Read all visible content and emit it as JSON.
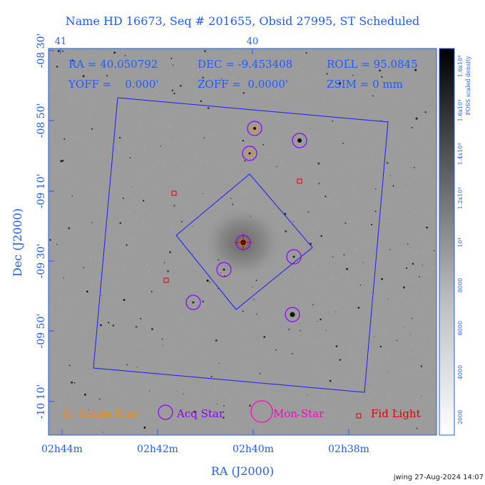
{
  "header": {
    "title": "Name HD 16673, Seq # 201655, Obsid 27995, ST Scheduled"
  },
  "top_axis": {
    "ticks": [
      "41",
      "40"
    ]
  },
  "info": {
    "ra": "RA = 40.050792",
    "dec": "DEC = -9.453408",
    "roll": "ROLL = 95.0845",
    "yoff": "YOFF =    0.000'",
    "zoff": "ZOFF =  0.0000'",
    "zsim": "ZSIM = 0 mm"
  },
  "axes": {
    "xlabel": "RA (J2000)",
    "ylabel": "Dec (J2000)",
    "xticks": [
      "02h44m",
      "02h42m",
      "02h40m",
      "02h38m"
    ],
    "yticks": [
      "-08 30'",
      "-08 50'",
      "-09 10'",
      "-09 30'",
      "-09 50'",
      "-10 10'"
    ]
  },
  "colorbar": {
    "label": "POSS scaled density",
    "ticks": [
      "2000",
      "4000",
      "6000",
      "8000",
      "10⁴",
      "1.2x10⁴",
      "1.4x10⁴",
      "1.6x10⁴",
      "1.6x10⁴"
    ]
  },
  "legend": {
    "guide": "Guide Star",
    "acq": "Acq Star",
    "mon": "Mon Star",
    "fid": "Fid Light"
  },
  "footer": {
    "stamp": "jwing 27-Aug-2024 14:07"
  },
  "colors": {
    "axis": "#1f5bff",
    "guide": "#ff8800",
    "acq": "#8a00ff",
    "mon": "#ff00cc",
    "fid": "#e00000",
    "field": "#1a1aff",
    "background": "#9a9a9a"
  },
  "chart_data": {
    "type": "scatter",
    "pointing": {
      "ra_deg": 40.050792,
      "dec_deg": -9.453408,
      "roll_deg": 95.0845
    },
    "ra_range": [
      "02h44m",
      "02h37m"
    ],
    "dec_range": [
      "-08 28'",
      "-10 24'"
    ],
    "acq_stars": [
      {
        "ra": "02h39m57s",
        "dec": "-08 54'"
      },
      {
        "ra": "02h39m00s",
        "dec": "-08 59'"
      },
      {
        "ra": "02h40m05s",
        "dec": "-09 05'"
      },
      {
        "ra": "02h40m12s",
        "dec": "-09 28'"
      },
      {
        "ra": "02h39m12s",
        "dec": "-09 35'"
      },
      {
        "ra": "02h40m35s",
        "dec": "-09 38'"
      },
      {
        "ra": "02h41m33s",
        "dec": "-09 47'"
      },
      {
        "ra": "02h39m13s",
        "dec": "-09 50'"
      }
    ],
    "guide_stars": [
      {
        "ra": "02h39m57s",
        "dec": "-08 54'"
      },
      {
        "ra": "02h40m05s",
        "dec": "-09 05'"
      },
      {
        "ra": "02h40m12s",
        "dec": "-09 28'"
      }
    ],
    "fid_lights": [
      {
        "ra": "02h39m00s",
        "dec": "-09 15'"
      },
      {
        "ra": "02h41m47s",
        "dec": "-09 17'"
      },
      {
        "ra": "02h41m55s",
        "dec": "-09 40'"
      }
    ]
  }
}
